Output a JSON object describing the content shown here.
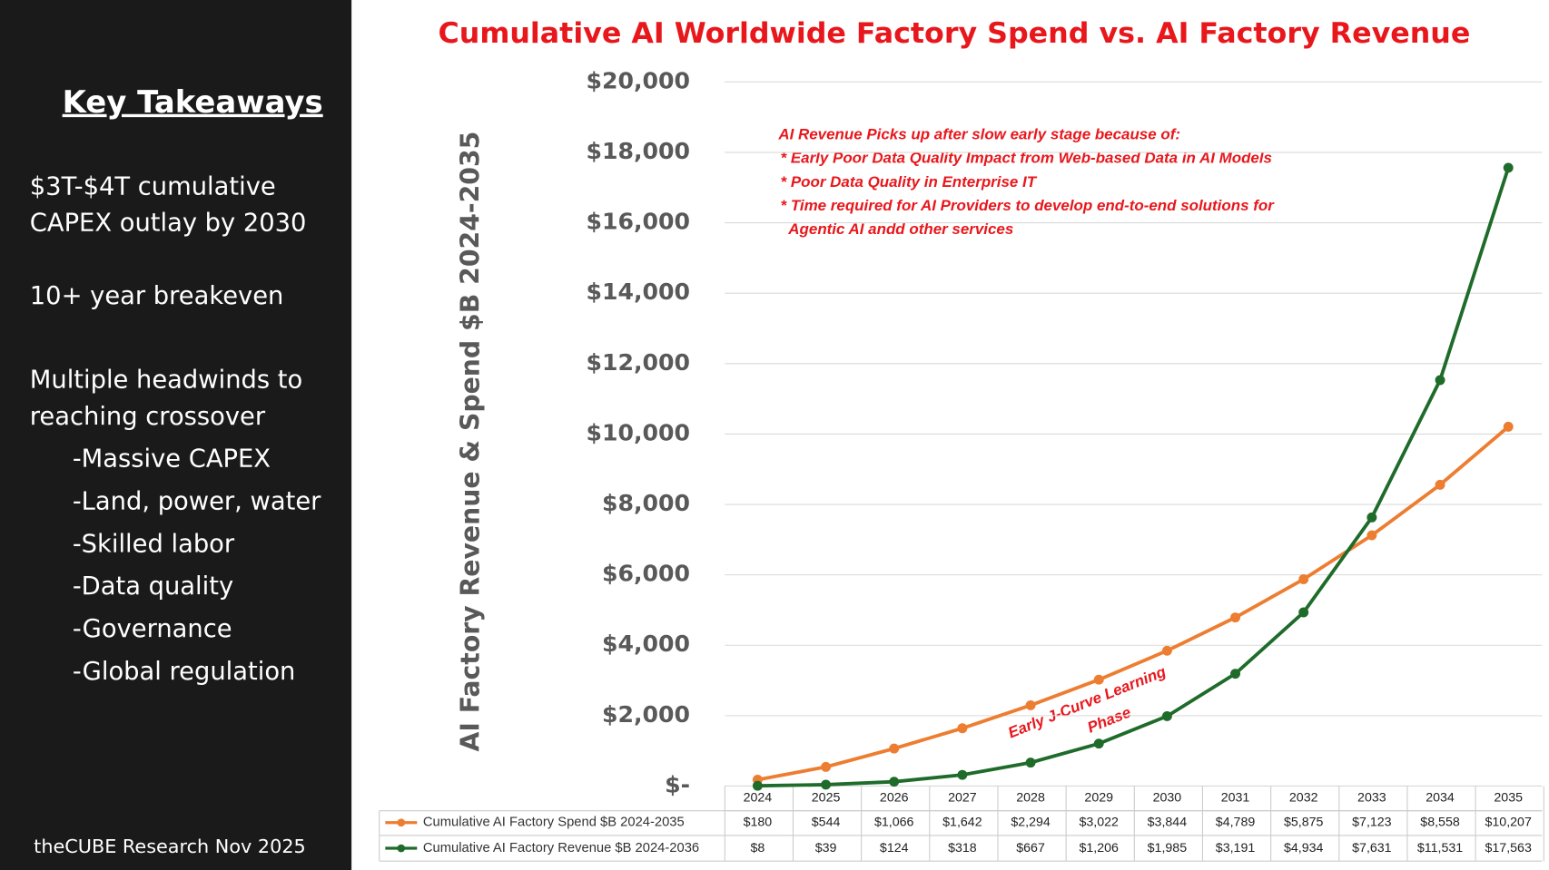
{
  "sidebar": {
    "title": "Key Takeaways",
    "blocks": [
      [
        "$3T-$4T cumulative",
        "CAPEX outlay by 2030"
      ],
      [
        "10+ year breakeven"
      ],
      [
        "Multiple headwinds to",
        "reaching crossover"
      ]
    ],
    "headwinds": [
      "-Massive CAPEX",
      "-Land, power, water",
      "-Skilled labor",
      "-Data quality",
      "-Governance",
      "-Global regulation"
    ],
    "source": "theCUBE Research Nov 2025"
  },
  "chart_data": {
    "type": "line",
    "title": "Cumulative AI Worldwide Factory Spend vs. AI Factory Revenue",
    "y_label": "AI Factory Revenue & Spend $B 2024-2035",
    "annotation": [
      "AI Revenue Picks up after slow early stage because of:",
      "* Early Poor Data Quality Impact from Web-based Data in AI Models",
      "* Poor Data Quality in Enterprise IT",
      "* Time required for AI Providers to develop end-to-end solutions for",
      "Agentic AI andd other services"
    ],
    "phase_label": [
      "Early J-Curve Learning",
      "Phase"
    ],
    "categories": [
      "2024",
      "2025",
      "2026",
      "2027",
      "2028",
      "2029",
      "2030",
      "2031",
      "2032",
      "2033",
      "2034",
      "2035"
    ],
    "series": [
      {
        "name": "Cumulative AI Factory Spend $B 2024-2035",
        "color": "#ed7d31",
        "values": [
          180,
          544,
          1066,
          1642,
          2294,
          3022,
          3844,
          4789,
          5875,
          7123,
          8558,
          10207
        ],
        "value_labels": [
          "$180",
          "$544",
          "$1,066",
          "$1,642",
          "$2,294",
          "$3,022",
          "$3,844",
          "$4,789",
          "$5,875",
          "$7,123",
          "$8,558",
          "$10,207"
        ]
      },
      {
        "name": "Cumulative AI Factory Revenue $B 2024-2036",
        "color": "#1e6b2a",
        "values": [
          8,
          39,
          124,
          318,
          667,
          1206,
          1985,
          3191,
          4934,
          7631,
          11531,
          17563
        ],
        "value_labels": [
          "$8",
          "$39",
          "$124",
          "$318",
          "$667",
          "$1,206",
          "$1,985",
          "$3,191",
          "$4,934",
          "$7,631",
          "$11,531",
          "$17,563"
        ]
      }
    ],
    "ylim": [
      0,
      20000
    ],
    "yticks": [
      {
        "value": 0,
        "label": "$-"
      },
      {
        "value": 2000,
        "label": "$2,000"
      },
      {
        "value": 4000,
        "label": "$4,000"
      },
      {
        "value": 6000,
        "label": "$6,000"
      },
      {
        "value": 8000,
        "label": "$8,000"
      },
      {
        "value": 10000,
        "label": "$10,000"
      },
      {
        "value": 12000,
        "label": "$12,000"
      },
      {
        "value": 14000,
        "label": "$14,000"
      },
      {
        "value": 16000,
        "label": "$16,000"
      },
      {
        "value": 18000,
        "label": "$18,000"
      },
      {
        "value": 20000,
        "label": "$20,000"
      }
    ],
    "grid": true
  }
}
